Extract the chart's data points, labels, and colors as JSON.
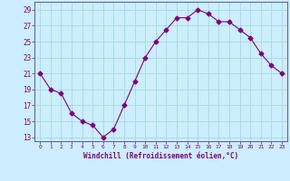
{
  "x": [
    0,
    1,
    2,
    3,
    4,
    5,
    6,
    7,
    8,
    9,
    10,
    11,
    12,
    13,
    14,
    15,
    16,
    17,
    18,
    19,
    20,
    21,
    22,
    23
  ],
  "y": [
    21,
    19,
    18.5,
    16,
    15,
    14.5,
    13,
    14,
    17,
    20,
    23,
    25,
    26.5,
    28,
    28,
    29,
    28.5,
    27.5,
    27.5,
    26.5,
    25.5,
    23.5,
    22,
    21
  ],
  "line_color": "#800080",
  "marker": "D",
  "marker_size": 2.5,
  "bg_color": "#cceeff",
  "grid_color": "#aadddd",
  "xlabel": "Windchill (Refroidissement éolien,°C)",
  "xlabel_color": "#800080",
  "tick_color": "#800080",
  "ylim": [
    12.5,
    30
  ],
  "xlim": [
    -0.5,
    23.5
  ],
  "yticks": [
    13,
    15,
    17,
    19,
    21,
    23,
    25,
    27,
    29
  ],
  "xticks": [
    0,
    1,
    2,
    3,
    4,
    5,
    6,
    7,
    8,
    9,
    10,
    11,
    12,
    13,
    14,
    15,
    16,
    17,
    18,
    19,
    20,
    21,
    22,
    23
  ],
  "xtick_labels": [
    "0",
    "1",
    "2",
    "3",
    "4",
    "5",
    "6",
    "7",
    "8",
    "9",
    "10",
    "11",
    "12",
    "13",
    "14",
    "15",
    "16",
    "17",
    "18",
    "19",
    "20",
    "21",
    "22",
    "23"
  ]
}
